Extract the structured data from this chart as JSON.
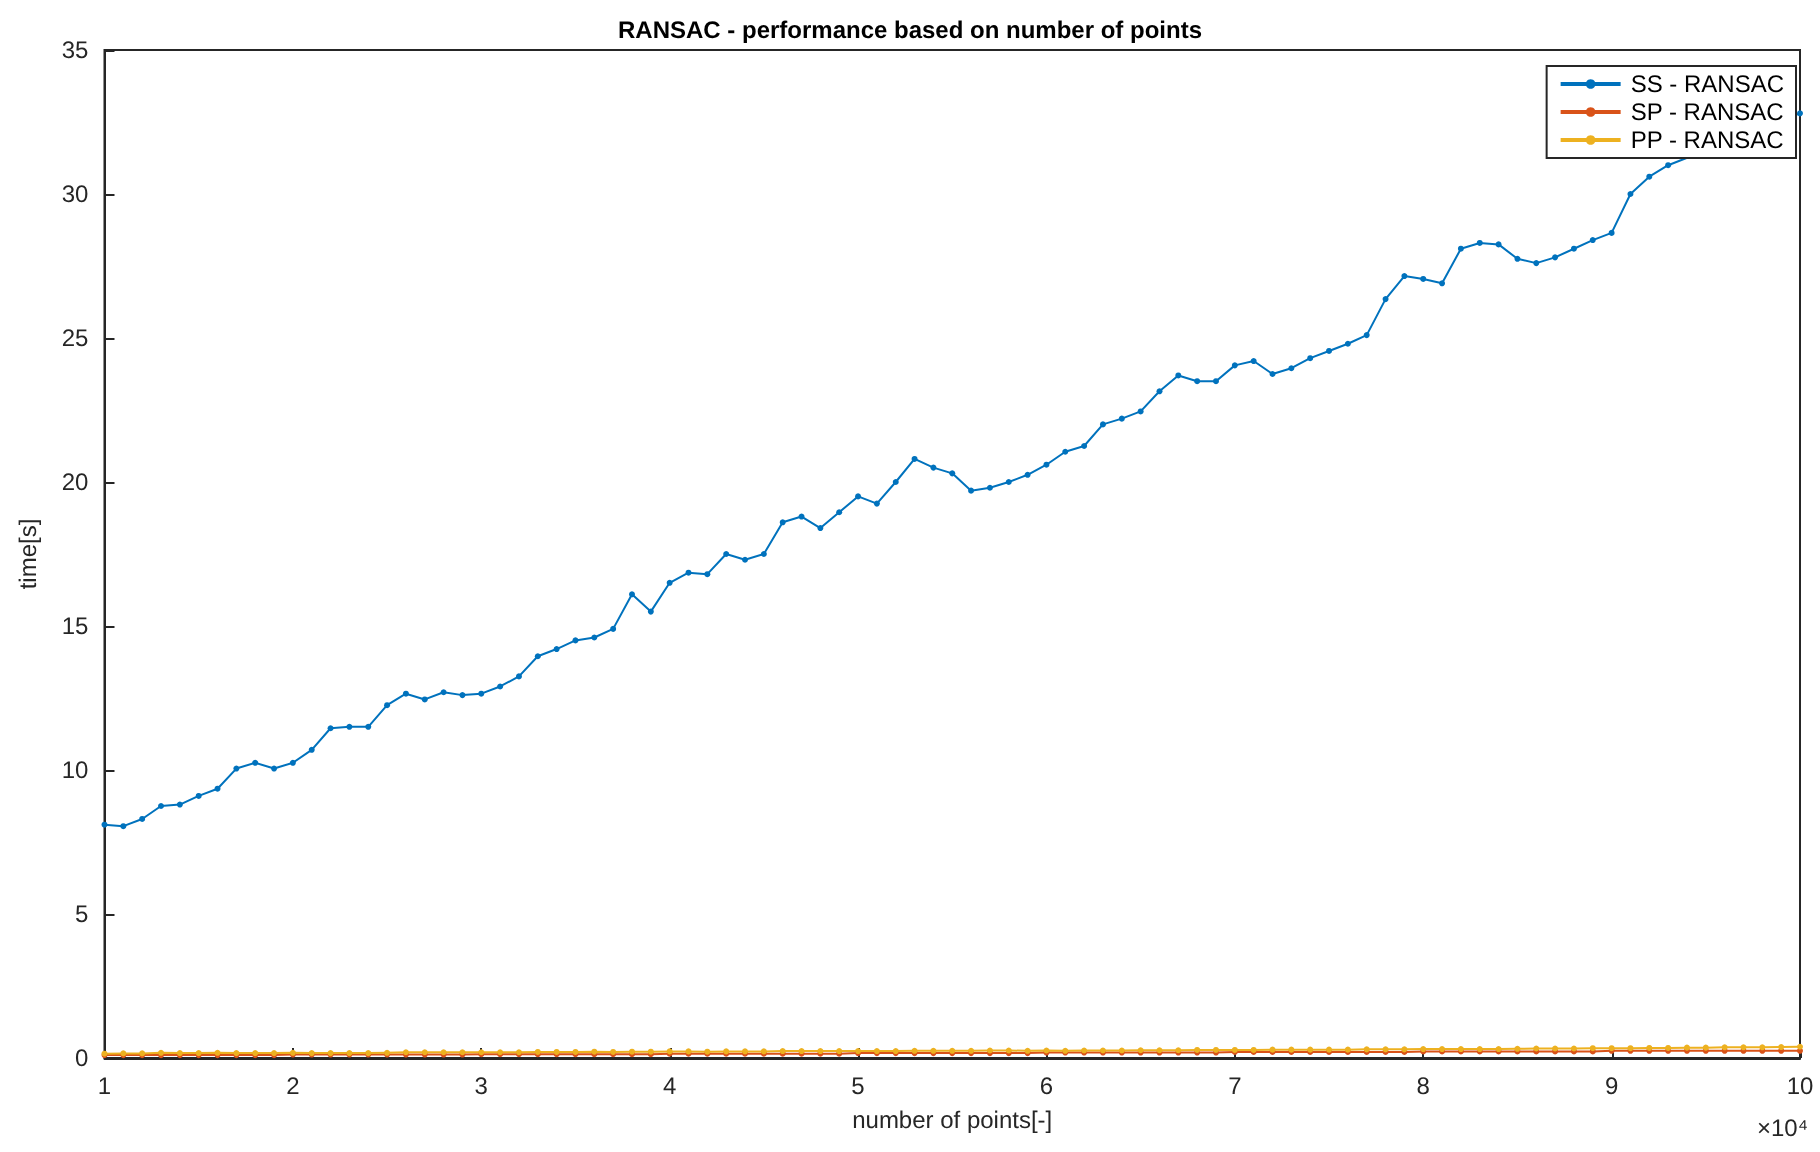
{
  "chart_data": {
    "type": "line",
    "title": "RANSAC - performance based on number of points",
    "xlabel": "number of points[-]",
    "ylabel": "time[s]",
    "annotations": [
      "×10⁴"
    ],
    "x": [
      1.0,
      1.1,
      1.2,
      1.3,
      1.4,
      1.5,
      1.6,
      1.7,
      1.8,
      1.9,
      2.0,
      2.1,
      2.2,
      2.3,
      2.4,
      2.5,
      2.6,
      2.7,
      2.8,
      2.9,
      3.0,
      3.1,
      3.2,
      3.3,
      3.4,
      3.5,
      3.6,
      3.7,
      3.8,
      3.9,
      4.0,
      4.1,
      4.2,
      4.3,
      4.4,
      4.5,
      4.6,
      4.7,
      4.8,
      4.9,
      5.0,
      5.1,
      5.2,
      5.3,
      5.4,
      5.5,
      5.6,
      5.7,
      5.8,
      5.9,
      6.0,
      6.1,
      6.2,
      6.3,
      6.4,
      6.5,
      6.6,
      6.7,
      6.8,
      6.9,
      7.0,
      7.1,
      7.2,
      7.3,
      7.4,
      7.5,
      7.6,
      7.7,
      7.8,
      7.9,
      8.0,
      8.1,
      8.2,
      8.3,
      8.4,
      8.5,
      8.6,
      8.7,
      8.8,
      8.9,
      9.0,
      9.1,
      9.2,
      9.3,
      9.4,
      9.5,
      9.6,
      9.7,
      9.8,
      9.9,
      10.0
    ],
    "series": [
      {
        "name": "SS - RANSAC",
        "color": "#0072bd",
        "values": [
          8.1,
          8.05,
          8.3,
          8.75,
          8.8,
          9.1,
          9.35,
          10.05,
          10.25,
          10.05,
          10.25,
          10.7,
          11.45,
          11.5,
          11.5,
          12.25,
          12.65,
          12.45,
          12.7,
          12.6,
          12.65,
          12.9,
          13.25,
          13.95,
          14.2,
          14.5,
          14.6,
          14.9,
          16.1,
          15.5,
          16.5,
          16.85,
          16.8,
          17.5,
          17.3,
          17.5,
          18.6,
          18.8,
          18.4,
          18.95,
          19.5,
          19.25,
          20.0,
          20.8,
          20.5,
          20.3,
          19.7,
          19.8,
          20.0,
          20.25,
          20.6,
          21.05,
          21.25,
          22.0,
          22.2,
          22.45,
          23.15,
          23.7,
          23.5,
          23.5,
          24.05,
          24.2,
          23.75,
          23.95,
          24.3,
          24.55,
          24.8,
          25.1,
          26.35,
          27.15,
          27.05,
          26.9,
          28.1,
          28.3,
          28.25,
          27.75,
          27.6,
          27.8,
          28.1,
          28.4,
          28.65,
          30.0,
          30.6,
          31.0,
          null,
          null,
          null,
          null,
          null,
          null,
          32.8
        ]
      },
      {
        "name": "SP - RANSAC",
        "color": "#d95319",
        "values": [
          0.1,
          0.1,
          0.1,
          0.1,
          0.1,
          0.1,
          0.1,
          0.1,
          0.1,
          0.1,
          0.12,
          0.12,
          0.12,
          0.12,
          0.12,
          0.12,
          0.12,
          0.12,
          0.12,
          0.12,
          0.13,
          0.13,
          0.13,
          0.13,
          0.13,
          0.13,
          0.13,
          0.13,
          0.13,
          0.13,
          0.15,
          0.15,
          0.15,
          0.15,
          0.15,
          0.15,
          0.15,
          0.15,
          0.15,
          0.15,
          0.17,
          0.17,
          0.17,
          0.17,
          0.17,
          0.17,
          0.17,
          0.17,
          0.17,
          0.17,
          0.19,
          0.19,
          0.19,
          0.19,
          0.19,
          0.19,
          0.19,
          0.19,
          0.19,
          0.19,
          0.21,
          0.21,
          0.21,
          0.21,
          0.21,
          0.21,
          0.21,
          0.21,
          0.21,
          0.21,
          0.23,
          0.23,
          0.23,
          0.23,
          0.23,
          0.23,
          0.23,
          0.23,
          0.23,
          0.23,
          0.25,
          0.25,
          0.25,
          0.25,
          0.25,
          0.25,
          0.25,
          0.25,
          0.25,
          0.25,
          0.25
        ]
      },
      {
        "name": "PP - RANSAC",
        "color": "#edb120",
        "values": [
          0.15,
          0.16,
          0.16,
          0.18,
          0.17,
          0.17,
          0.18,
          0.17,
          0.17,
          0.17,
          0.18,
          0.17,
          0.17,
          0.17,
          0.17,
          0.18,
          0.2,
          0.2,
          0.2,
          0.2,
          0.2,
          0.2,
          0.2,
          0.21,
          0.21,
          0.21,
          0.22,
          0.21,
          0.22,
          0.22,
          0.23,
          0.23,
          0.22,
          0.23,
          0.23,
          0.23,
          0.24,
          0.24,
          0.24,
          0.24,
          0.24,
          0.24,
          0.24,
          0.25,
          0.25,
          0.25,
          0.25,
          0.26,
          0.26,
          0.25,
          0.26,
          0.25,
          0.26,
          0.26,
          0.26,
          0.27,
          0.27,
          0.27,
          0.28,
          0.28,
          0.28,
          0.28,
          0.29,
          0.29,
          0.29,
          0.29,
          0.29,
          0.3,
          0.3,
          0.3,
          0.31,
          0.31,
          0.31,
          0.31,
          0.31,
          0.32,
          0.33,
          0.33,
          0.33,
          0.34,
          0.34,
          0.34,
          0.35,
          0.35,
          0.36,
          0.36,
          0.37,
          0.37,
          0.37,
          0.38,
          0.39
        ]
      }
    ],
    "xlim": [
      1,
      10
    ],
    "xticks": [
      1,
      2,
      3,
      4,
      5,
      6,
      7,
      8,
      9,
      10
    ],
    "ylim": [
      0,
      35
    ],
    "yticks": [
      0,
      5,
      10,
      15,
      20,
      25,
      30,
      35
    ],
    "grid": false,
    "legend": "top right",
    "marker": "circle",
    "line_style": "solid"
  }
}
